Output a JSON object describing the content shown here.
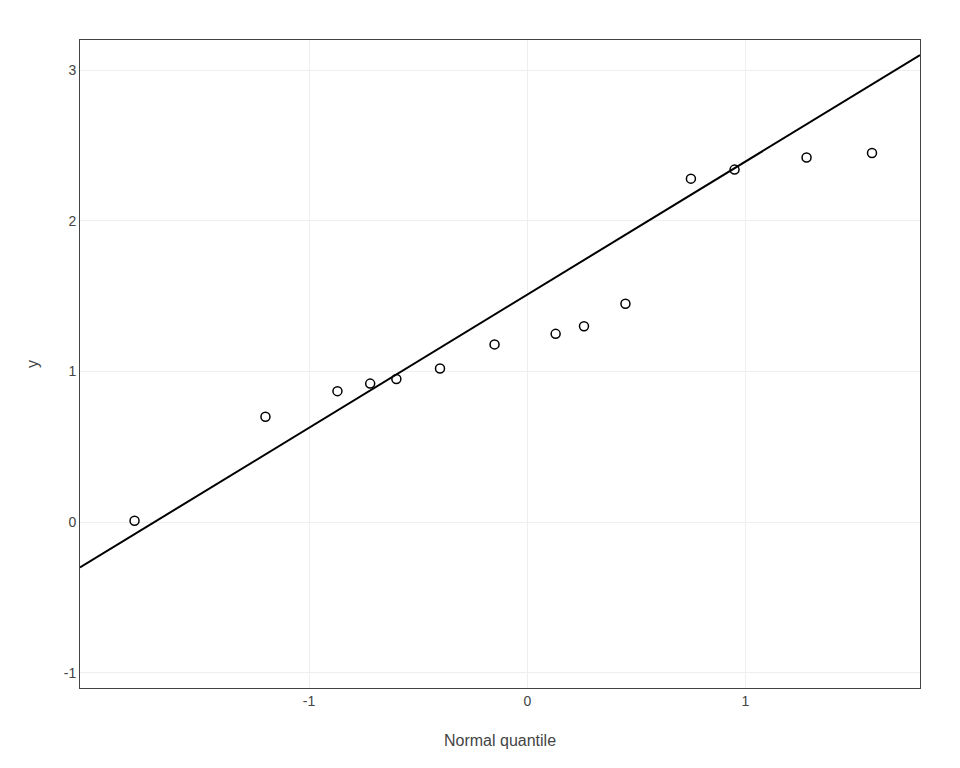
{
  "chart_data": {
    "type": "scatter",
    "xlabel": "Normal quantile",
    "ylabel": "y",
    "series": [
      {
        "type": "scatter",
        "marker": "circle-open",
        "color": "#000000",
        "x": [
          -1.8,
          -1.2,
          -0.87,
          -0.72,
          -0.6,
          -0.4,
          -0.15,
          0.13,
          0.26,
          0.45,
          0.75,
          0.95,
          1.28,
          1.58
        ],
        "values": [
          0.01,
          0.7,
          0.87,
          0.92,
          0.95,
          1.02,
          1.18,
          1.25,
          1.3,
          1.45,
          2.28,
          2.34,
          2.42,
          2.45
        ]
      },
      {
        "type": "line",
        "line_style": "solid",
        "color": "#000000",
        "x": [
          -2.05,
          1.8
        ],
        "values": [
          -0.3,
          3.1
        ]
      }
    ],
    "xlim": [
      -2.05,
      1.8
    ],
    "ylim": [
      -1.1,
      3.2
    ],
    "xticks": [
      -1,
      0,
      1
    ],
    "yticks": [
      -1,
      0,
      1,
      2,
      3
    ],
    "grid": true
  }
}
